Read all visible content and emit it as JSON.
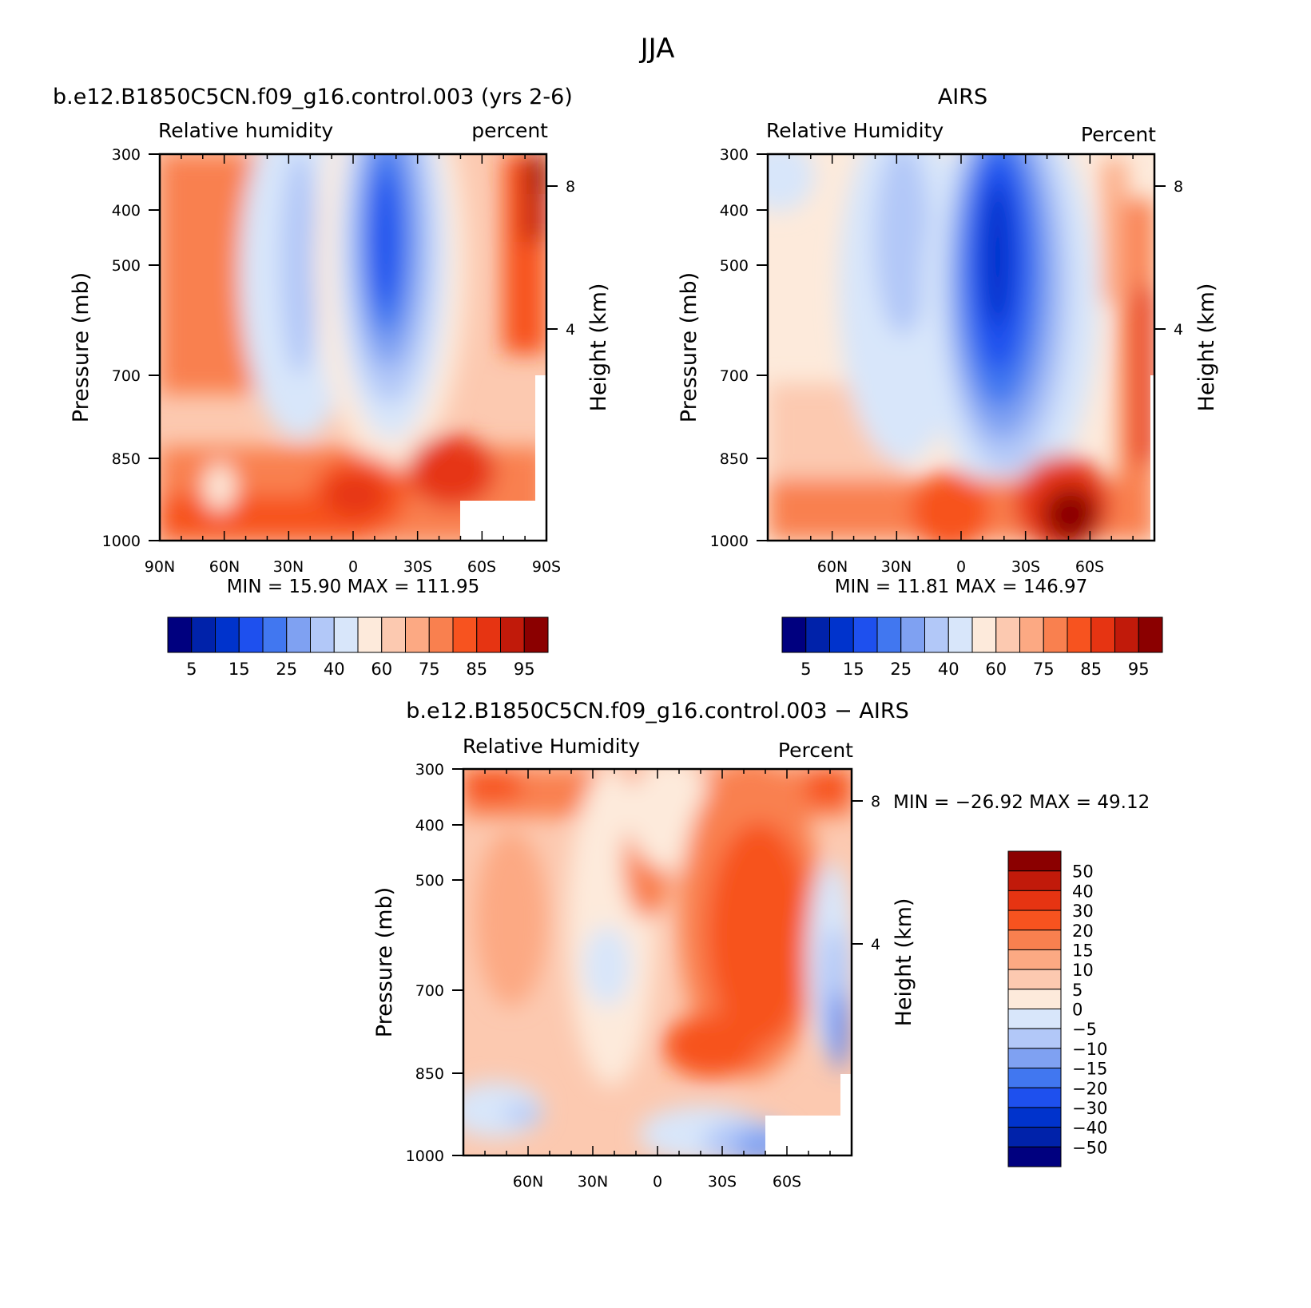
{
  "page_title": "JJA",
  "panel_left": {
    "title": "b.e12.B1850C5CN.f09_g16.control.003 (yrs 2-6)",
    "left_label": "Relative humidity",
    "right_label": "percent",
    "stats": "MIN =   15.90   MAX = 111.95"
  },
  "panel_right": {
    "title": "AIRS",
    "left_label": "Relative Humidity",
    "right_label": "Percent",
    "stats": "MIN =   11.81   MAX = 146.97"
  },
  "panel_diff": {
    "title": "b.e12.B1850C5CN.f09_g16.control.003 − AIRS",
    "left_label": "Relative Humidity",
    "right_label": "Percent",
    "stats": "MIN = −26.92   MAX =   49.12"
  },
  "colors": {
    "rh_scale": [
      "#00007f",
      "#0022aa",
      "#0033cc",
      "#1e50ee",
      "#4177f0",
      "#7fa1f2",
      "#b2c8f8",
      "#d8e6fa",
      "#fdeadb",
      "#fcc9b0",
      "#fca983",
      "#f9804f",
      "#f7531f",
      "#e63412",
      "#c11a0a",
      "#8b0000"
    ],
    "diff_scale": [
      "#00007f",
      "#0022aa",
      "#0033cc",
      "#1e50ee",
      "#4177f0",
      "#7fa1f2",
      "#b2c8f8",
      "#d8e6fa",
      "#fdeadb",
      "#fcc9b0",
      "#fca983",
      "#f9804f",
      "#f7531f",
      "#e63412",
      "#c11a0a",
      "#8b0000"
    ]
  },
  "chart_data": [
    {
      "type": "heatmap",
      "title": "b.e12.B1850C5CN.f09_g16.control.003 (yrs 2-6)",
      "ylabel": "Pressure (mb)",
      "y2label": "Height (km)",
      "x_ticks": [
        "90N",
        "60N",
        "30N",
        "0",
        "30S",
        "60S",
        "90S"
      ],
      "y_ticks": [
        300,
        400,
        500,
        700,
        850,
        1000
      ],
      "y2_ticks": [
        8,
        4
      ],
      "xlim": [
        90,
        -90
      ],
      "ylim": [
        1000,
        300
      ],
      "y_scale": "log",
      "levels": [
        5,
        15,
        25,
        40,
        60,
        75,
        85,
        95
      ],
      "min": 15.9,
      "max": 111.95
    },
    {
      "type": "heatmap",
      "title": "AIRS",
      "ylabel": "Pressure (mb)",
      "y2label": "Height (km)",
      "x_ticks": [
        "60N",
        "30N",
        "0",
        "30S",
        "60S"
      ],
      "y_ticks": [
        300,
        400,
        500,
        700,
        850,
        1000
      ],
      "y2_ticks": [
        8,
        4
      ],
      "xlim": [
        90,
        -90
      ],
      "ylim": [
        1000,
        300
      ],
      "y_scale": "log",
      "levels": [
        5,
        15,
        25,
        40,
        60,
        75,
        85,
        95
      ],
      "min": 11.81,
      "max": 146.97
    },
    {
      "type": "heatmap",
      "title": "b.e12.B1850C5CN.f09_g16.control.003 − AIRS",
      "ylabel": "Pressure (mb)",
      "y2label": "Height (km)",
      "x_ticks": [
        "60N",
        "30N",
        "0",
        "30S",
        "60S"
      ],
      "y_ticks": [
        300,
        400,
        500,
        700,
        850,
        1000
      ],
      "y2_ticks": [
        8,
        4
      ],
      "xlim": [
        90,
        -90
      ],
      "ylim": [
        1000,
        300
      ],
      "y_scale": "log",
      "levels": [
        50,
        40,
        30,
        20,
        15,
        10,
        5,
        0,
        -5,
        -10,
        -15,
        -20,
        -30,
        -40,
        -50
      ],
      "min": -26.92,
      "max": 49.12
    }
  ]
}
